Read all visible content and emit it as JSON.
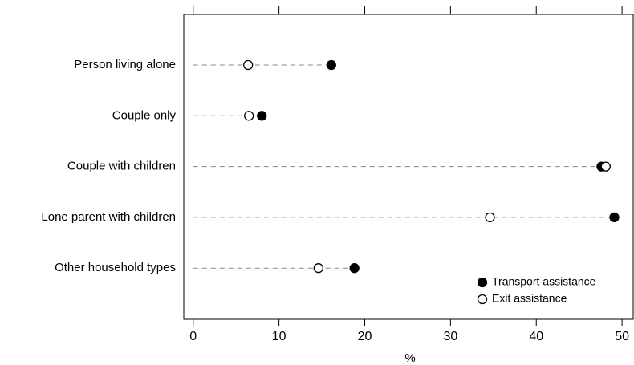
{
  "chart_data": {
    "type": "dot",
    "categories": [
      "Person living alone",
      "Couple only",
      "Couple with children",
      "Lone parent with children",
      "Other household types"
    ],
    "series": [
      {
        "name": "Transport assistance",
        "color": "#000000",
        "values": [
          16.1,
          8.0,
          47.6,
          49.1,
          18.8
        ]
      },
      {
        "name": "Exit assistance",
        "color": "#ffffff",
        "values": [
          6.4,
          6.5,
          48.1,
          34.6,
          14.6
        ]
      }
    ],
    "xlabel": "%",
    "xlim": [
      -1.1,
      51.3
    ],
    "xticks": [
      0,
      10,
      20,
      30,
      40,
      50
    ],
    "legend": "lower right"
  }
}
